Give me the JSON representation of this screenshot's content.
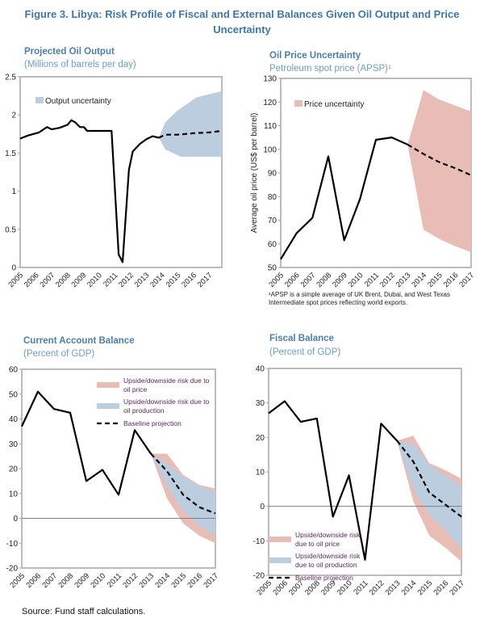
{
  "figure_title": "Figure 3. Libya: Risk Profile of Fiscal and External Balances Given Oil Output and Price Uncertainty",
  "source": "Source: Fund staff calculations.",
  "colors": {
    "title": "#3f77a8",
    "production_band": "#bccddf",
    "price_band": "#e8bdb5",
    "line": "#000000"
  },
  "chart_data": [
    {
      "id": "oil-output",
      "type": "area+line",
      "title": "Projected Oil Output",
      "subtitle": "(Millions of barrels per day)",
      "ylabel": "",
      "ylim": [
        0,
        2.5
      ],
      "yticks": [
        "0",
        "0.5",
        "1",
        "1.5",
        "2",
        "2.5"
      ],
      "xticks": [
        "2005",
        "2006",
        "2007",
        "2008",
        "2009",
        "2010",
        "2011",
        "2012",
        "2013",
        "2014",
        "2015",
        "2016",
        "2017"
      ],
      "xlim": [
        2005,
        2017.8
      ],
      "actual": [
        [
          2005,
          1.69
        ],
        [
          2005.5,
          1.73
        ],
        [
          2006.2,
          1.77
        ],
        [
          2006.7,
          1.84
        ],
        [
          2007,
          1.81
        ],
        [
          2007.5,
          1.83
        ],
        [
          2008,
          1.87
        ],
        [
          2008.25,
          1.93
        ],
        [
          2008.5,
          1.9
        ],
        [
          2008.8,
          1.84
        ],
        [
          2009.05,
          1.84
        ],
        [
          2009.25,
          1.79
        ],
        [
          2010.8,
          1.79
        ],
        [
          2011.25,
          0.17
        ],
        [
          2011.5,
          0.07
        ],
        [
          2011.9,
          1.28
        ],
        [
          2012.15,
          1.52
        ],
        [
          2012.6,
          1.62
        ],
        [
          2013,
          1.68
        ],
        [
          2013.4,
          1.72
        ],
        [
          2013.8,
          1.7
        ]
      ],
      "projection": [
        [
          2013.8,
          1.7
        ],
        [
          2014.2,
          1.74
        ],
        [
          2015,
          1.74
        ],
        [
          2016,
          1.76
        ],
        [
          2017,
          1.77
        ],
        [
          2017.8,
          1.79
        ]
      ],
      "bands": [
        {
          "name": "Output uncertainty",
          "color": "#bccddf",
          "upper": [
            [
              2013.8,
              1.7
            ],
            [
              2014.2,
              1.9
            ],
            [
              2015,
              2.06
            ],
            [
              2016.2,
              2.23
            ],
            [
              2017.8,
              2.31
            ]
          ],
          "lower": [
            [
              2013.8,
              1.7
            ],
            [
              2014.2,
              1.55
            ],
            [
              2015.2,
              1.45
            ],
            [
              2017.8,
              1.45
            ]
          ]
        }
      ],
      "legend": [
        "Output uncertainty"
      ]
    },
    {
      "id": "oil-price",
      "type": "area+line",
      "title": "Oil Price Uncertainty",
      "subtitle": "Petroleum spot price (APSP)¹",
      "ylabel": "Average oil price (US$ per barrel)",
      "ylim": [
        50,
        130
      ],
      "yticks": [
        "50",
        "60",
        "70",
        "80",
        "90",
        "100",
        "110",
        "120",
        "130"
      ],
      "xticks": [
        "2005",
        "2006",
        "2007",
        "2008",
        "2009",
        "2010",
        "2011",
        "2012",
        "2013",
        "2014",
        "2015",
        "2016",
        "2017"
      ],
      "xlim": [
        2005,
        2017
      ],
      "actual": [
        [
          2005,
          53.5
        ],
        [
          2006,
          64.5
        ],
        [
          2007,
          71
        ],
        [
          2008,
          97
        ],
        [
          2009,
          61.5
        ],
        [
          2010,
          79
        ],
        [
          2011,
          104
        ],
        [
          2012,
          105
        ],
        [
          2013,
          102
        ]
      ],
      "projection": [
        [
          2013,
          102
        ],
        [
          2014,
          98
        ],
        [
          2015,
          94.5
        ],
        [
          2016,
          92
        ],
        [
          2017,
          89
        ]
      ],
      "bands": [
        {
          "name": "Price uncertainty",
          "color": "#e8bdb5",
          "upper": [
            [
              2013,
              102
            ],
            [
              2014,
              125
            ],
            [
              2015,
              121
            ],
            [
              2016,
              118.5
            ],
            [
              2017,
              116
            ]
          ],
          "lower": [
            [
              2013,
              102
            ],
            [
              2014,
              66
            ],
            [
              2015,
              62
            ],
            [
              2016,
              59
            ],
            [
              2017,
              56.5
            ]
          ]
        }
      ],
      "legend": [
        "Price uncertainty"
      ],
      "footnote": "¹APSP is a simple average of UK Brent, Dubai, and West Texas Intermediate spot prices reflecting world exports."
    },
    {
      "id": "current-account",
      "type": "area+line",
      "title": "Current Account Balance",
      "subtitle": "(Percent of GDP)",
      "ylabel": "",
      "ylim": [
        -20,
        60
      ],
      "yticks": [
        "-20",
        "-10",
        "0",
        "10",
        "20",
        "30",
        "40",
        "50",
        "60"
      ],
      "xticks": [
        "2005",
        "2006",
        "2007",
        "2008",
        "2009",
        "2010",
        "2011",
        "2012",
        "2013",
        "2014",
        "2015",
        "2016",
        "2017"
      ],
      "xlim": [
        2005,
        2017
      ],
      "actual": [
        [
          2005,
          37
        ],
        [
          2006,
          51
        ],
        [
          2007,
          44
        ],
        [
          2008,
          42.5
        ],
        [
          2009,
          15
        ],
        [
          2010,
          19.5
        ],
        [
          2011,
          9.5
        ],
        [
          2012,
          35.5
        ],
        [
          2013,
          26
        ]
      ],
      "projection": [
        [
          2013,
          26
        ],
        [
          2014,
          19
        ],
        [
          2015,
          9.5
        ],
        [
          2016,
          4.5
        ],
        [
          2017,
          2
        ]
      ],
      "bands": [
        {
          "name": "Upside/downside risk due to oil price",
          "color": "#e8bdb5",
          "upper": [
            [
              2013,
              26
            ],
            [
              2014,
              26
            ],
            [
              2015,
              17.5
            ],
            [
              2016,
              13.5
            ],
            [
              2017,
              12
            ]
          ],
          "lower": [
            [
              2013,
              26
            ],
            [
              2014,
              8
            ],
            [
              2015,
              -2
            ],
            [
              2016,
              -7
            ],
            [
              2017,
              -10
            ]
          ]
        },
        {
          "name": "Upside/downside risk due to oil production",
          "color": "#bccddf",
          "upper": [
            [
              2013,
              26
            ],
            [
              2014,
              22
            ],
            [
              2015,
              17
            ],
            [
              2016,
              13
            ],
            [
              2017,
              10.5
            ]
          ],
          "lower": [
            [
              2013,
              26
            ],
            [
              2014,
              13
            ],
            [
              2015,
              3
            ],
            [
              2016,
              -3
            ],
            [
              2017,
              -7
            ]
          ]
        }
      ],
      "legend": [
        "Upside/downside risk due to",
        "oil price",
        "Upside/downside risk due to",
        "oil production",
        "Baseline projection"
      ]
    },
    {
      "id": "fiscal-balance",
      "type": "area+line",
      "title": "Fiscal Balance",
      "subtitle": "(Percent of GDP)",
      "ylabel": "",
      "ylim": [
        -20,
        40
      ],
      "yticks": [
        "-20",
        "-10",
        "0",
        "10",
        "20",
        "30",
        "40"
      ],
      "xticks": [
        "2005",
        "2006",
        "2007",
        "2008",
        "2009",
        "2010",
        "2011",
        "2012",
        "2013",
        "2014",
        "2015",
        "2016",
        "2017"
      ],
      "xlim": [
        2005,
        2017
      ],
      "actual": [
        [
          2005,
          27
        ],
        [
          2006,
          30.5
        ],
        [
          2007,
          24.5
        ],
        [
          2008,
          25.5
        ],
        [
          2009,
          -3
        ],
        [
          2010,
          9
        ],
        [
          2011,
          -15.5
        ],
        [
          2012,
          24
        ],
        [
          2013,
          19
        ]
      ],
      "projection": [
        [
          2013,
          19
        ],
        [
          2014,
          13
        ],
        [
          2015,
          4
        ],
        [
          2016,
          0.5
        ],
        [
          2017,
          -3
        ]
      ],
      "bands": [
        {
          "name": "Upside/downside risk due to oil price",
          "color": "#e8bdb5",
          "upper": [
            [
              2013,
              19
            ],
            [
              2014,
              20.5
            ],
            [
              2015,
              12.5
            ],
            [
              2016,
              10.5
            ],
            [
              2017,
              8
            ]
          ],
          "lower": [
            [
              2013,
              19
            ],
            [
              2014,
              1.5
            ],
            [
              2015,
              -8.5
            ],
            [
              2016,
              -12
            ],
            [
              2017,
              -16
            ]
          ]
        },
        {
          "name": "Upside/downside risk due to oil production",
          "color": "#bccddf",
          "upper": [
            [
              2013,
              19
            ],
            [
              2014,
              18
            ],
            [
              2015,
              12
            ],
            [
              2016,
              9
            ],
            [
              2017,
              6
            ]
          ],
          "lower": [
            [
              2013,
              19
            ],
            [
              2014,
              5
            ],
            [
              2015,
              -2.5
            ],
            [
              2016,
              -7
            ],
            [
              2017,
              -12
            ]
          ]
        }
      ],
      "legend": [
        "Upside/downside risk",
        "due to oil price",
        "Upside/downside risk",
        "due to oil production",
        "Baseline projection"
      ]
    }
  ]
}
